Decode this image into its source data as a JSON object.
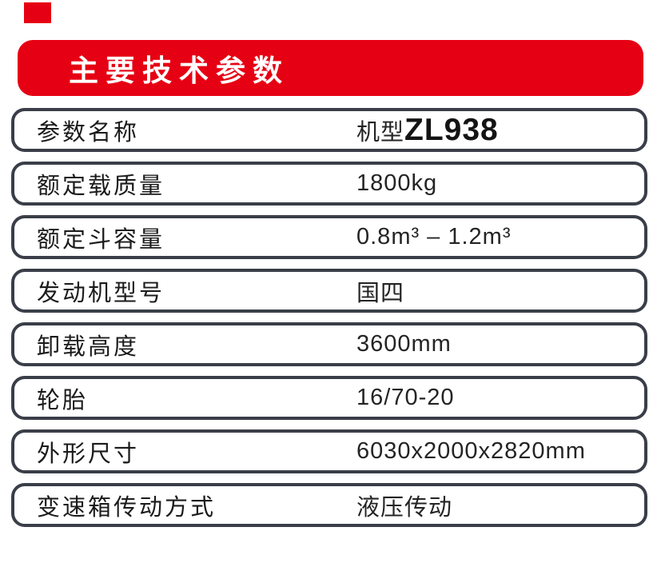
{
  "page": {
    "accent_red": "#e60013",
    "outline_color": "#3a3e48",
    "background": "#ffffff"
  },
  "header": {
    "title": "主要技术参数"
  },
  "table": {
    "rows": [
      {
        "label": "参数名称",
        "value": "机型 ",
        "value_bold": "ZL938"
      },
      {
        "label": "额定载质量",
        "value": "1800kg",
        "value_bold": ""
      },
      {
        "label": "额定斗容量",
        "value": "0.8m³ – 1.2m³",
        "value_bold": ""
      },
      {
        "label": "发动机型号",
        "value": "国四",
        "value_bold": ""
      },
      {
        "label": "卸载高度",
        "value": "3600mm",
        "value_bold": ""
      },
      {
        "label": "轮胎",
        "value": "16/70-20",
        "value_bold": ""
      },
      {
        "label": "外形尺寸",
        "value": "6030x2000x2820mm",
        "value_bold": ""
      },
      {
        "label": "变速箱传动方式",
        "value": "液压传动",
        "value_bold": ""
      }
    ]
  }
}
